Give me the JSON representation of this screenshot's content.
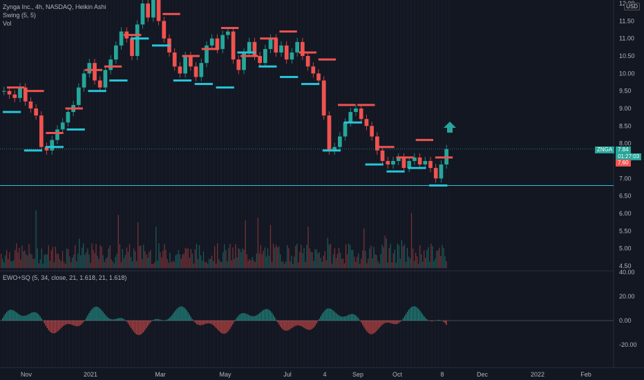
{
  "legend": {
    "title": "Zynga Inc., 4h, NASDAQ, Heikin Ashi",
    "swing": "Swing (5, 5)",
    "vol": "Vol",
    "ewo": "EWO+SQ (5, 34, close, 21, 1.618, 21, 1.618)"
  },
  "currency": "USD",
  "price_axis": [
    "12.00",
    "11.50",
    "11.00",
    "10.50",
    "10.00",
    "9.50",
    "9.00",
    "8.50",
    "8.00",
    "7.50",
    "7.00",
    "6.50",
    "6.00",
    "5.50",
    "5.00",
    "4.50"
  ],
  "osc_axis": [
    "40.00",
    "20.00",
    "0.00",
    "-20.00"
  ],
  "time_axis": [
    "Nov",
    "2021",
    "Mar",
    "May",
    "Jul",
    "4",
    "Sep",
    "Oct",
    "8",
    "Dec",
    "2022",
    "Feb"
  ],
  "badges": {
    "symbol": "ZNGA",
    "last": "7.84",
    "countdown": "01:27:03",
    "low": "7.60"
  },
  "colors": {
    "up": "#26a69a",
    "down": "#ef5350",
    "swing_high": "#ef5350",
    "swing_low": "#26c6da",
    "bg": "#131722",
    "arrow": "#26a69a"
  },
  "chart_data": {
    "type": "candlestick",
    "price_range": [
      4.4,
      12.1
    ],
    "osc_range": [
      -25,
      40
    ],
    "closes": [
      9.5,
      9.4,
      9.3,
      9.6,
      9.2,
      9.0,
      8.8,
      7.9,
      7.8,
      8.1,
      8.4,
      8.6,
      8.9,
      9.1,
      9.6,
      10.0,
      10.3,
      9.8,
      9.6,
      10.1,
      10.4,
      10.8,
      11.2,
      11.0,
      10.5,
      11.4,
      12.0,
      11.6,
      12.2,
      11.5,
      11.0,
      10.6,
      10.2,
      10.0,
      10.5,
      10.2,
      9.9,
      10.3,
      10.8,
      11.0,
      10.7,
      11.1,
      11.2,
      10.4,
      10.1,
      10.6,
      10.9,
      10.5,
      10.3,
      10.7,
      11.0,
      10.6,
      10.8,
      10.4,
      10.6,
      10.9,
      10.5,
      10.2,
      10.0,
      9.8,
      8.8,
      7.8,
      7.9,
      8.2,
      8.6,
      8.9,
      9.0,
      8.7,
      8.5,
      8.2,
      7.8,
      7.5,
      7.4,
      7.5,
      7.6,
      7.3,
      7.5,
      7.6,
      7.4,
      7.5,
      7.3,
      7.0,
      7.4,
      7.84
    ],
    "swing_highs": [
      9.6,
      9.5,
      8.3,
      9.0,
      10.1,
      10.2,
      11.1,
      12.3,
      11.7,
      10.5,
      10.7,
      11.3,
      10.5,
      11.0,
      11.2,
      10.6,
      10.4,
      9.1,
      9.1,
      7.9,
      7.6,
      8.1,
      7.6
    ],
    "swing_lows": [
      8.9,
      7.8,
      7.9,
      8.4,
      9.5,
      9.8,
      11.0,
      10.8,
      9.8,
      9.7,
      9.6,
      10.6,
      10.2,
      9.9,
      9.7,
      7.8,
      8.6,
      7.4,
      7.2,
      7.3,
      6.8
    ]
  }
}
